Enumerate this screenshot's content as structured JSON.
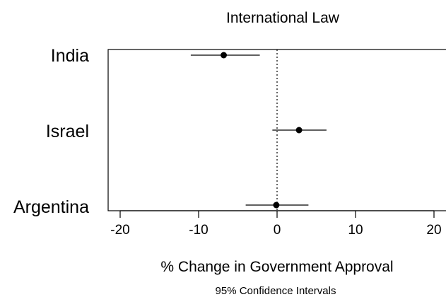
{
  "chart_data": {
    "type": "forest",
    "title": "International Law",
    "xlabel": "% Change in Government Approval",
    "note": "95% Confidence Intervals",
    "categories": [
      "India",
      "Israel",
      "Argentina"
    ],
    "estimates": [
      -6.8,
      2.8,
      -0.1
    ],
    "ci_low": [
      -11.0,
      -0.6,
      -4.0
    ],
    "ci_high": [
      -2.2,
      6.3,
      4.0
    ],
    "xticks": [
      -20,
      -10,
      0,
      10,
      20
    ],
    "xlim": [
      -21.5,
      21.5
    ],
    "reference_line": 0
  }
}
